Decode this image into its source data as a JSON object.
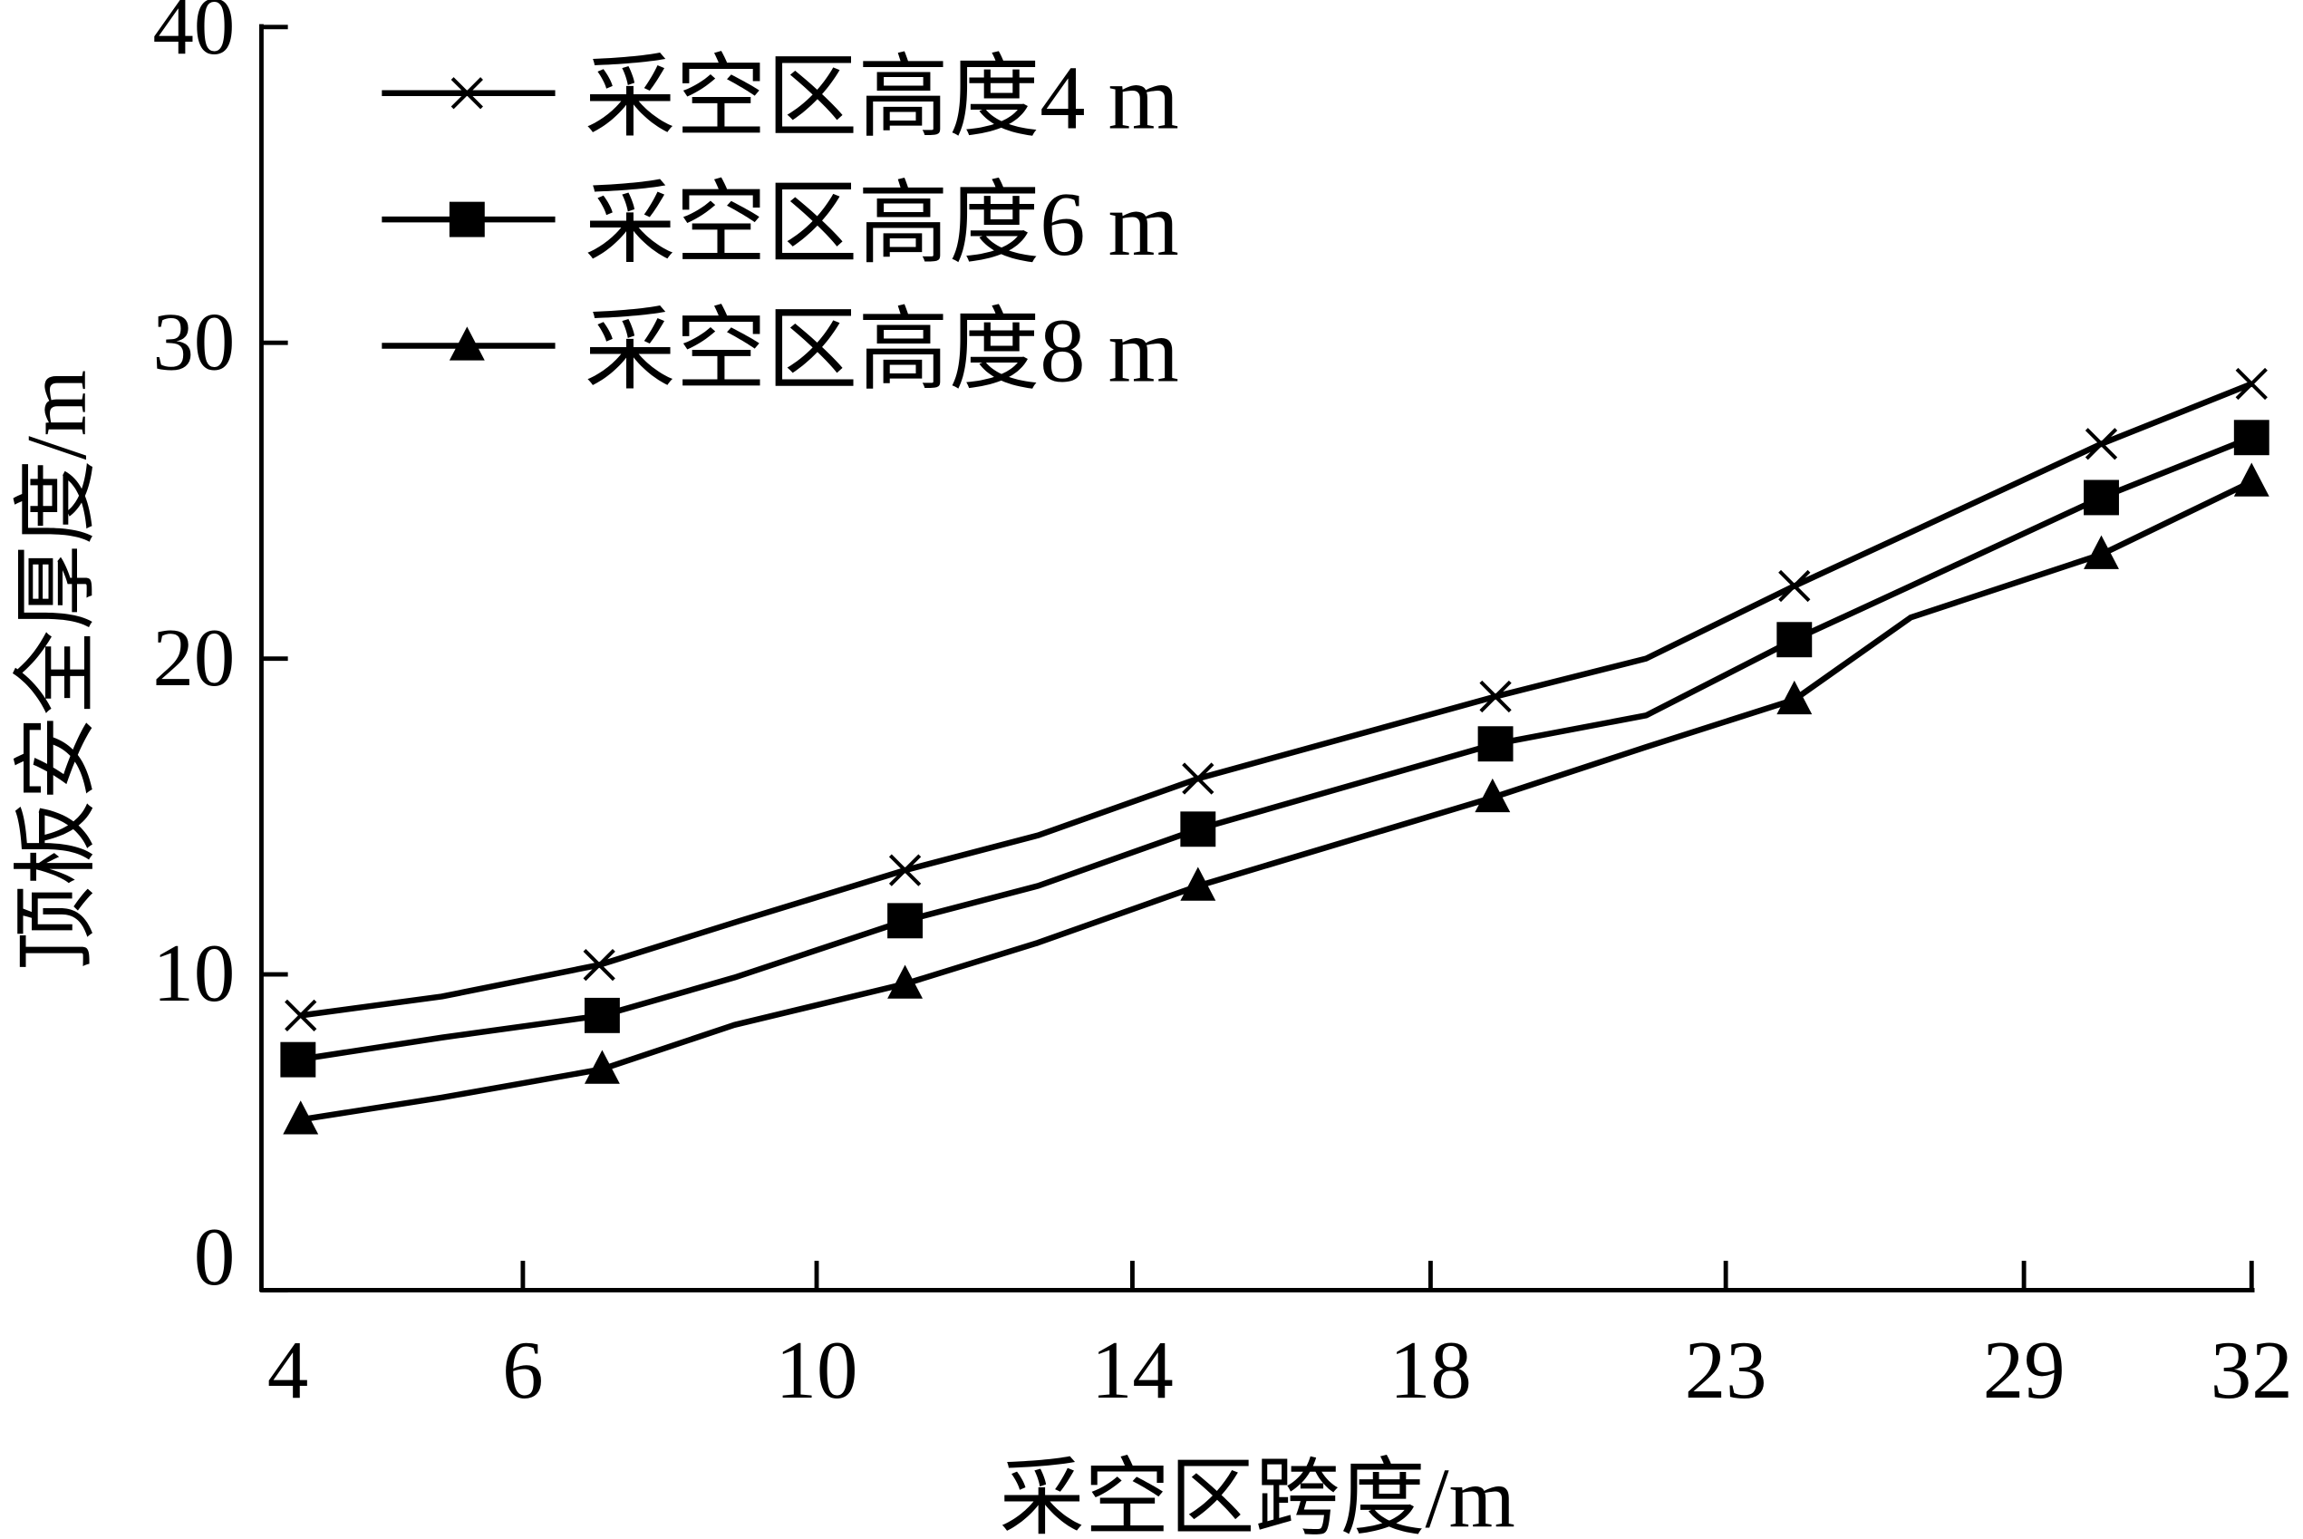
{
  "chart_data": {
    "type": "line",
    "title": "",
    "xlabel": "采空区跨度/m",
    "ylabel": "顶板安全厚度/m",
    "ylim": [
      0,
      40
    ],
    "yticks": [
      "0",
      "10",
      "20",
      "30",
      "40"
    ],
    "yticks_values": [
      0,
      10,
      20,
      30,
      40
    ],
    "xticks": [
      "4",
      "6",
      "10",
      "14",
      "18",
      "23",
      "29",
      "32"
    ],
    "x_units_note": "x positions given as fractional tick index (0 = tick '4', 7 = tick '32')",
    "grid": false,
    "legend_position": "top-left",
    "series": [
      {
        "name": "采空区高度4 m",
        "marker": "x",
        "points": [
          {
            "x": 0.15,
            "y": 8.7,
            "marker": true
          },
          {
            "x": 0.69,
            "y": 9.3,
            "marker": false
          },
          {
            "x": 1.26,
            "y": 10.3,
            "marker": true
          },
          {
            "x": 1.74,
            "y": 11.7,
            "marker": false
          },
          {
            "x": 2.28,
            "y": 13.3,
            "marker": true
          },
          {
            "x": 2.7,
            "y": 14.4,
            "marker": false
          },
          {
            "x": 3.22,
            "y": 16.2,
            "marker": true
          },
          {
            "x": 4.22,
            "y": 18.8,
            "marker": true
          },
          {
            "x": 4.73,
            "y": 20.0,
            "marker": false
          },
          {
            "x": 5.23,
            "y": 22.3,
            "marker": true
          },
          {
            "x": 5.62,
            "y": 24.0,
            "marker": false
          },
          {
            "x": 6.34,
            "y": 26.8,
            "marker": true
          },
          {
            "x": 7.0,
            "y": 28.7,
            "marker": true
          }
        ]
      },
      {
        "name": "采空区高度6 m",
        "marker": "square",
        "points": [
          {
            "x": 0.14,
            "y": 7.3,
            "marker": true
          },
          {
            "x": 0.69,
            "y": 8.0,
            "marker": false
          },
          {
            "x": 1.27,
            "y": 8.7,
            "marker": true
          },
          {
            "x": 1.72,
            "y": 9.9,
            "marker": false
          },
          {
            "x": 2.28,
            "y": 11.7,
            "marker": true
          },
          {
            "x": 2.7,
            "y": 12.8,
            "marker": false
          },
          {
            "x": 3.22,
            "y": 14.6,
            "marker": true
          },
          {
            "x": 4.22,
            "y": 17.3,
            "marker": true
          },
          {
            "x": 4.73,
            "y": 18.2,
            "marker": false
          },
          {
            "x": 5.23,
            "y": 20.6,
            "marker": true
          },
          {
            "x": 5.62,
            "y": 22.3,
            "marker": false
          },
          {
            "x": 6.34,
            "y": 25.1,
            "marker": true
          },
          {
            "x": 7.0,
            "y": 27.0,
            "marker": true
          }
        ]
      },
      {
        "name": "采空区高度8 m",
        "marker": "triangle",
        "points": [
          {
            "x": 0.15,
            "y": 5.4,
            "marker": true
          },
          {
            "x": 0.69,
            "y": 6.1,
            "marker": false
          },
          {
            "x": 1.27,
            "y": 7.0,
            "marker": true
          },
          {
            "x": 1.72,
            "y": 8.4,
            "marker": false
          },
          {
            "x": 2.28,
            "y": 9.7,
            "marker": true
          },
          {
            "x": 2.7,
            "y": 11.0,
            "marker": false
          },
          {
            "x": 3.22,
            "y": 12.8,
            "marker": true
          },
          {
            "x": 4.21,
            "y": 15.6,
            "marker": true
          },
          {
            "x": 4.73,
            "y": 17.2,
            "marker": false
          },
          {
            "x": 5.23,
            "y": 18.7,
            "marker": true
          },
          {
            "x": 5.62,
            "y": 21.3,
            "marker": false
          },
          {
            "x": 6.34,
            "y": 23.3,
            "marker": true
          },
          {
            "x": 7.0,
            "y": 25.6,
            "marker": true
          }
        ]
      }
    ]
  }
}
